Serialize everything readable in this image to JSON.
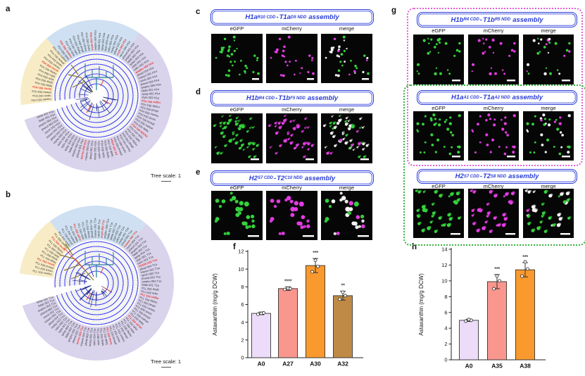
{
  "letters": {
    "a": "a",
    "b": "b",
    "c": "c",
    "d": "d",
    "e": "e",
    "f": "f",
    "g": "g",
    "h": "h"
  },
  "colors": {
    "accent_blue": "#2b3dd8",
    "box_pink": "#e45fd3",
    "box_green": "#35b03b",
    "egfp": "#35d23c",
    "mcherry": "#e23ce2",
    "merge_coloc": "#f4f4f4",
    "sector_yellow": "#f8ecc6",
    "sector_blue": "#cfe0f2",
    "sector_purple": "#d9d3ec",
    "ring_blue": "#3c3cf0",
    "grid_gray": "#c9c9c9",
    "branch_navy": "#1d2b86",
    "branch_teal": "#2f7f9e",
    "branch_olive": "#8d7b26",
    "red_label": "#e8382d",
    "bar_stroke": "#333333"
  },
  "trees": [
    {
      "letter": "a",
      "suffix": "H1a",
      "scale_label": "Tree scale: 1",
      "stems": [
        "maxen",
        "hatech",
        "monen",
        "ranch",
        "rfam",
        "banna",
        "phend",
        "chaln",
        "tylax",
        "amphn",
        "hynda",
        "phrow",
        "falab",
        "nemve",
        "acrmi",
        "spisp",
        "orbfa",
        "pocda",
        "stylo",
        "discs",
        "monbr",
        "salro",
        "capow",
        "chofl",
        "mylsp",
        "doped",
        "halam",
        "plead",
        "kobra",
        "nyssa"
      ],
      "red_labels": [
        "aureo 001 H1a",
        "aureo 002 H1a",
        "nspam 002 H1a",
        "eryth 002 H1a",
        "eryth 003 H1a",
        "amphs 002 H1a",
        "regen 001 H1a",
        "FK506 001 H1a",
        "D4 100 stilpa",
        "pycno 002 H1a"
      ]
    },
    {
      "letter": "b",
      "suffix": "T1a",
      "scale_label": "Tree scale: 1",
      "stems": [
        "maxen",
        "hatech",
        "monen",
        "ranch",
        "rfam",
        "banna",
        "phend",
        "chaln",
        "tylax",
        "amphn",
        "hynda",
        "phrow",
        "falab",
        "nemve",
        "acrmi",
        "spisp",
        "orbfa",
        "pocda",
        "stylo",
        "discs",
        "monbr",
        "salro",
        "capow",
        "chofl",
        "mylsp",
        "doped",
        "halam",
        "plead",
        "kobra",
        "nyssa"
      ],
      "red_labels": [
        "aureo 001 T1a",
        "aureo 002 T1a",
        "eryth 002 T1a",
        "eryth 003 T1a",
        "nspam 002 T1a",
        "FK506 002 T1a",
        "regen 001 T1a",
        "wryth 002 T1a",
        "fuma 000 T2a",
        "aureo 003 T1a"
      ]
    }
  ],
  "micro_panels": [
    {
      "id": "c",
      "title_parts": {
        "left_base": "H1a",
        "left_sub": "R10 CDD",
        "separator": "-",
        "right_base": "T1a",
        "right_sub": "D5 NDD",
        "word": "assembly"
      },
      "channels": [
        "eGFP",
        "mCherry",
        "merge"
      ],
      "dots": {
        "count": 34,
        "size": 1.6,
        "seed": 7,
        "coloc": 0.45,
        "pairs": false
      }
    },
    {
      "id": "d",
      "title_parts": {
        "left_base": "H1b",
        "left_sub": "R4 CDD",
        "separator": "-",
        "right_base": "T1b",
        "right_sub": "F5 NDD",
        "word": "assembly"
      },
      "channels": [
        "eGFP",
        "mCherry",
        "merge"
      ],
      "dots": {
        "count": 52,
        "size": 1.7,
        "seed": 13,
        "coloc": 0.55,
        "pairs": true
      }
    },
    {
      "id": "e",
      "title_parts": {
        "left_base": "H2",
        "left_sub": "S7 CDD",
        "separator": "-",
        "right_base": "T2",
        "right_sub": "C10 NDD",
        "word": "assembly"
      },
      "channels": [
        "eGFP",
        "mCherry",
        "merge"
      ],
      "dots": {
        "count": 25,
        "size": 2.8,
        "seed": 29,
        "coloc": 0.6,
        "pairs": false
      }
    },
    {
      "id": "g1",
      "title_parts": {
        "left_base": "H1b",
        "left_sub": "R4 CDD",
        "separator": "-",
        "right_base": "T1b",
        "right_sub": "R5 NDD",
        "word": "assembly"
      },
      "channels": [
        "eGFP",
        "mCherry",
        "merge"
      ],
      "dots": {
        "count": 25,
        "size": 1.7,
        "seed": 37,
        "coloc": 0.45,
        "pairs": false
      }
    },
    {
      "id": "g2",
      "title_parts": {
        "left_base": "H1a",
        "left_sub": "A1 CDD",
        "separator": "-",
        "right_base": "T1a",
        "right_sub": "A2 NDD",
        "word": "assembly"
      },
      "channels": [
        "eGFP",
        "mCherry",
        "merge"
      ],
      "dots": {
        "count": 34,
        "size": 1.7,
        "seed": 43,
        "coloc": 0.45,
        "pairs": false
      }
    },
    {
      "id": "g3",
      "title_parts": {
        "left_base": "H2",
        "left_sub": "S7 CDD",
        "separator": "-",
        "right_base": "T2",
        "right_sub": "S8 NDD",
        "word": "assembly"
      },
      "channels": [
        "eGFP",
        "mCherry",
        "merge"
      ],
      "dots": {
        "count": 32,
        "size": 2.1,
        "seed": 53,
        "coloc": 0.55,
        "pairs": true
      }
    }
  ],
  "chart_data": [
    {
      "id": "f",
      "type": "bar",
      "categories": [
        "A0",
        "A27",
        "A30",
        "A32"
      ],
      "values": [
        5.0,
        7.8,
        10.4,
        7.0
      ],
      "errors": [
        0.15,
        0.2,
        0.8,
        0.5
      ],
      "significance": [
        "",
        "****",
        "***",
        "**"
      ],
      "bar_colors": [
        "#ecdcf9",
        "#f9968e",
        "#f9992e",
        "#bf8a46"
      ],
      "points": [
        [
          4.9,
          5.05,
          5.0
        ],
        [
          7.7,
          7.8,
          7.85
        ],
        [
          9.7,
          10.3,
          11.0
        ],
        [
          6.6,
          7.0,
          7.4
        ]
      ],
      "ylabel": "Astaxanthin (mg/g DCW)",
      "xlabel": "",
      "ylim": [
        0,
        12
      ],
      "ytick_step": 2,
      "grid": false,
      "legend": "none"
    },
    {
      "id": "h",
      "type": "bar",
      "categories": [
        "A0",
        "A35",
        "A38"
      ],
      "values": [
        5.0,
        9.9,
        11.4
      ],
      "errors": [
        0.15,
        0.9,
        0.9
      ],
      "significance": [
        "",
        "***",
        "***"
      ],
      "bar_colors": [
        "#ecdcf9",
        "#f9968e",
        "#f9992e"
      ],
      "points": [
        [
          4.9,
          5.0,
          5.1
        ],
        [
          9.0,
          10.0,
          10.6
        ],
        [
          10.6,
          11.5,
          12.4
        ]
      ],
      "ylabel": "Astaxanthin (mg/g DCW)",
      "xlabel": "",
      "ylim": [
        0,
        14
      ],
      "ytick_step": 2,
      "grid": false,
      "legend": "none"
    }
  ]
}
